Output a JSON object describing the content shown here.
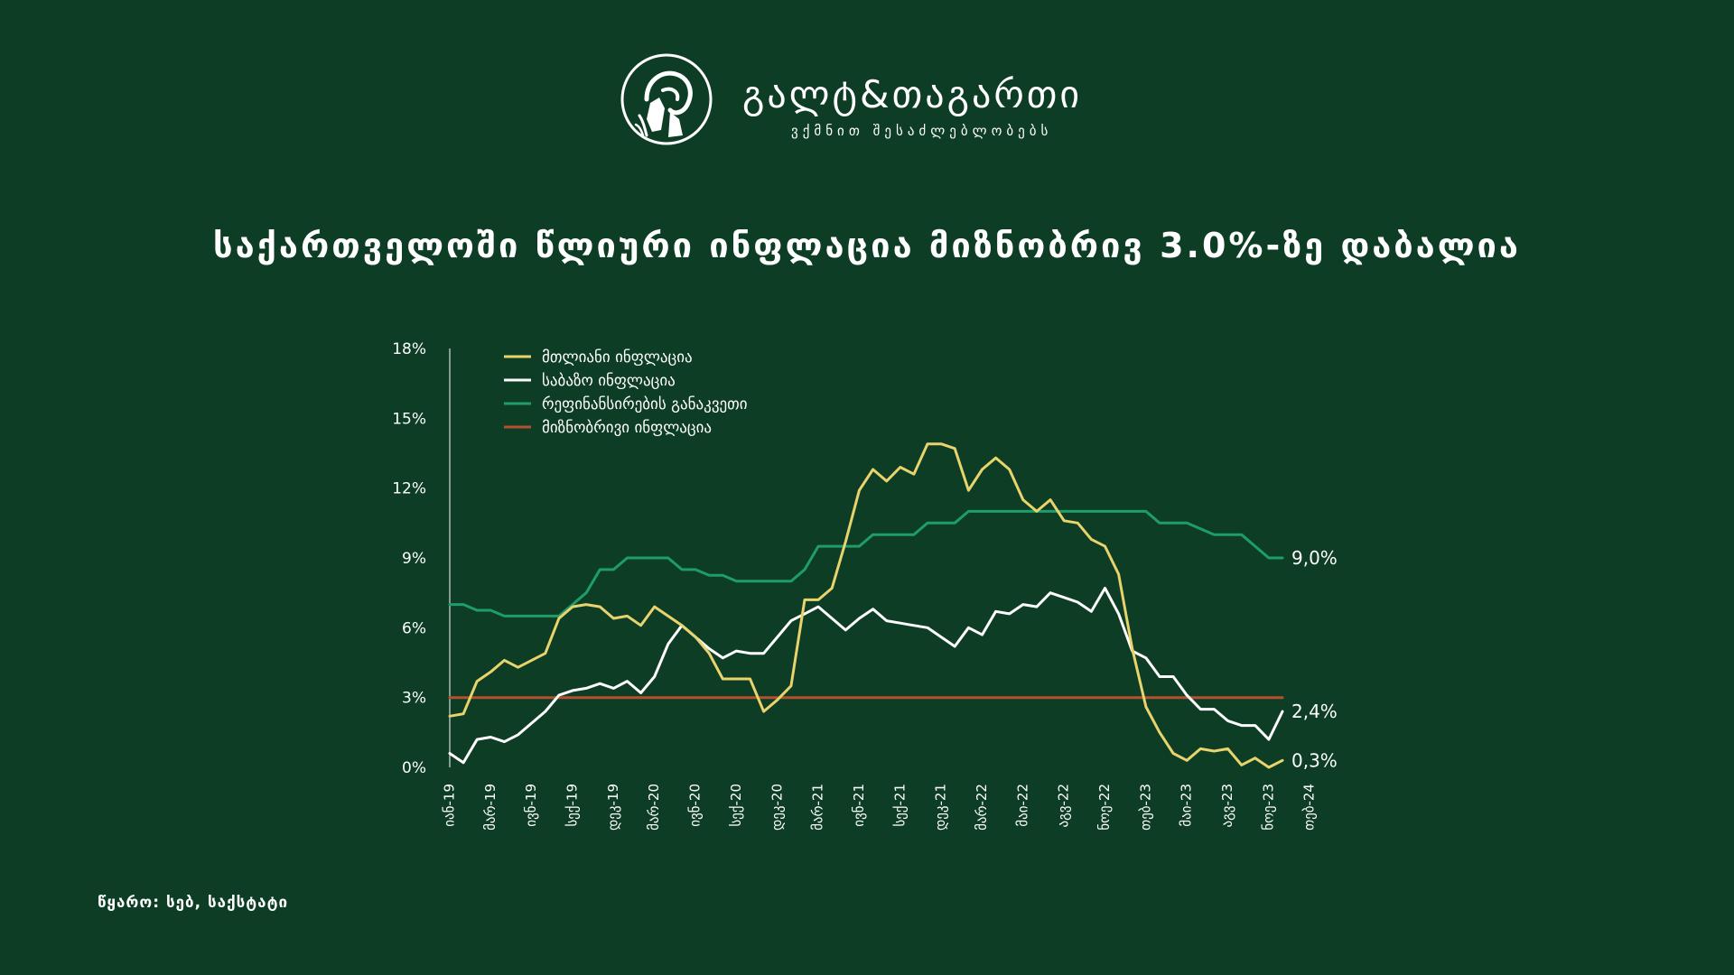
{
  "brand": {
    "name": "გალტ&თაგართი",
    "tagline": "ვქმნით შესაძლებლობებს",
    "emblem_icon": "ram-head-emblem-icon"
  },
  "title": "საქართველოში წლიური ინფლაცია მიზნობრივ 3.0%-ზე დაბალია",
  "source": "წყარო: სებ, საქსტატი",
  "chart_data": {
    "type": "line",
    "x_tick_labels": [
      "იან-19",
      "მარ-19",
      "ივნ-19",
      "სექ-19",
      "დეკ-19",
      "მარ-20",
      "ივნ-20",
      "სექ-20",
      "დეკ-20",
      "მარ-21",
      "ივნ-21",
      "სექ-21",
      "დეკ-21",
      "მარ-22",
      "მაი-22",
      "აგვ-22",
      "ნოე-22",
      "თებ-23",
      "მაი-23",
      "აგვ-23",
      "ნოე-23",
      "თებ-24"
    ],
    "y_tick_labels": [
      "0%",
      "3%",
      "6%",
      "9%",
      "12%",
      "15%",
      "18%"
    ],
    "ylim": [
      0,
      18
    ],
    "grid": false,
    "legend_position": "top-left",
    "series": [
      {
        "name": "მთლიანი ინფლაცია",
        "color": "#e8d36c",
        "values": [
          2.2,
          2.3,
          3.7,
          4.1,
          4.6,
          4.3,
          4.6,
          4.9,
          6.4,
          6.9,
          7.0,
          6.9,
          6.4,
          6.5,
          6.1,
          6.9,
          6.5,
          6.1,
          5.6,
          4.9,
          3.8,
          3.8,
          3.8,
          2.4,
          2.9,
          3.5,
          7.2,
          7.2,
          7.7,
          9.7,
          11.9,
          12.8,
          12.3,
          12.9,
          12.6,
          13.9,
          13.9,
          13.7,
          11.9,
          12.8,
          13.3,
          12.8,
          11.5,
          11.0,
          11.5,
          10.6,
          10.5,
          9.8,
          9.5,
          8.3,
          5.1,
          2.6,
          1.5,
          0.6,
          0.3,
          0.8,
          0.7,
          0.8,
          0.1,
          0.4,
          0.0,
          0.3
        ],
        "end_label": "0,3%"
      },
      {
        "name": "საბაზო ინფლაცია",
        "color": "#ffffff",
        "values": [
          0.6,
          0.2,
          1.2,
          1.3,
          1.1,
          1.4,
          1.9,
          2.4,
          3.1,
          3.3,
          3.4,
          3.6,
          3.4,
          3.7,
          3.2,
          3.9,
          5.3,
          6.1,
          5.6,
          5.1,
          4.7,
          5.0,
          4.9,
          4.9,
          5.6,
          6.3,
          6.6,
          6.9,
          6.4,
          5.9,
          6.4,
          6.8,
          6.3,
          6.2,
          6.1,
          6.0,
          5.6,
          5.2,
          6.0,
          5.7,
          6.7,
          6.6,
          7.0,
          6.9,
          7.5,
          7.3,
          7.1,
          6.7,
          7.7,
          6.6,
          5.0,
          4.7,
          3.9,
          3.9,
          3.1,
          2.5,
          2.5,
          2.0,
          1.8,
          1.8,
          1.2,
          2.4
        ],
        "end_label": "2,4%"
      },
      {
        "name": "რეფინანსირების განაკვეთი",
        "color": "#1e9d6b",
        "values": [
          7.0,
          7.0,
          6.75,
          6.75,
          6.5,
          6.5,
          6.5,
          6.5,
          6.5,
          7.0,
          7.5,
          8.5,
          8.5,
          9.0,
          9.0,
          9.0,
          9.0,
          8.5,
          8.5,
          8.25,
          8.25,
          8.0,
          8.0,
          8.0,
          8.0,
          8.0,
          8.5,
          9.5,
          9.5,
          9.5,
          9.5,
          10.0,
          10.0,
          10.0,
          10.0,
          10.5,
          10.5,
          10.5,
          11.0,
          11.0,
          11.0,
          11.0,
          11.0,
          11.0,
          11.0,
          11.0,
          11.0,
          11.0,
          11.0,
          11.0,
          11.0,
          11.0,
          10.5,
          10.5,
          10.5,
          10.25,
          10.0,
          10.0,
          10.0,
          9.5,
          9.0,
          9.0
        ],
        "end_label": "9,0%"
      },
      {
        "name": "მიზნობრივი ინფლაცია",
        "color": "#b5502f",
        "values": [
          3.0,
          3.0,
          3.0,
          3.0,
          3.0,
          3.0,
          3.0,
          3.0,
          3.0,
          3.0,
          3.0,
          3.0,
          3.0,
          3.0,
          3.0,
          3.0,
          3.0,
          3.0,
          3.0,
          3.0,
          3.0,
          3.0,
          3.0,
          3.0,
          3.0,
          3.0,
          3.0,
          3.0,
          3.0,
          3.0,
          3.0,
          3.0,
          3.0,
          3.0,
          3.0,
          3.0,
          3.0,
          3.0,
          3.0,
          3.0,
          3.0,
          3.0,
          3.0,
          3.0,
          3.0,
          3.0,
          3.0,
          3.0,
          3.0,
          3.0,
          3.0,
          3.0,
          3.0,
          3.0,
          3.0,
          3.0,
          3.0,
          3.0,
          3.0,
          3.0,
          3.0,
          3.0
        ]
      }
    ]
  }
}
